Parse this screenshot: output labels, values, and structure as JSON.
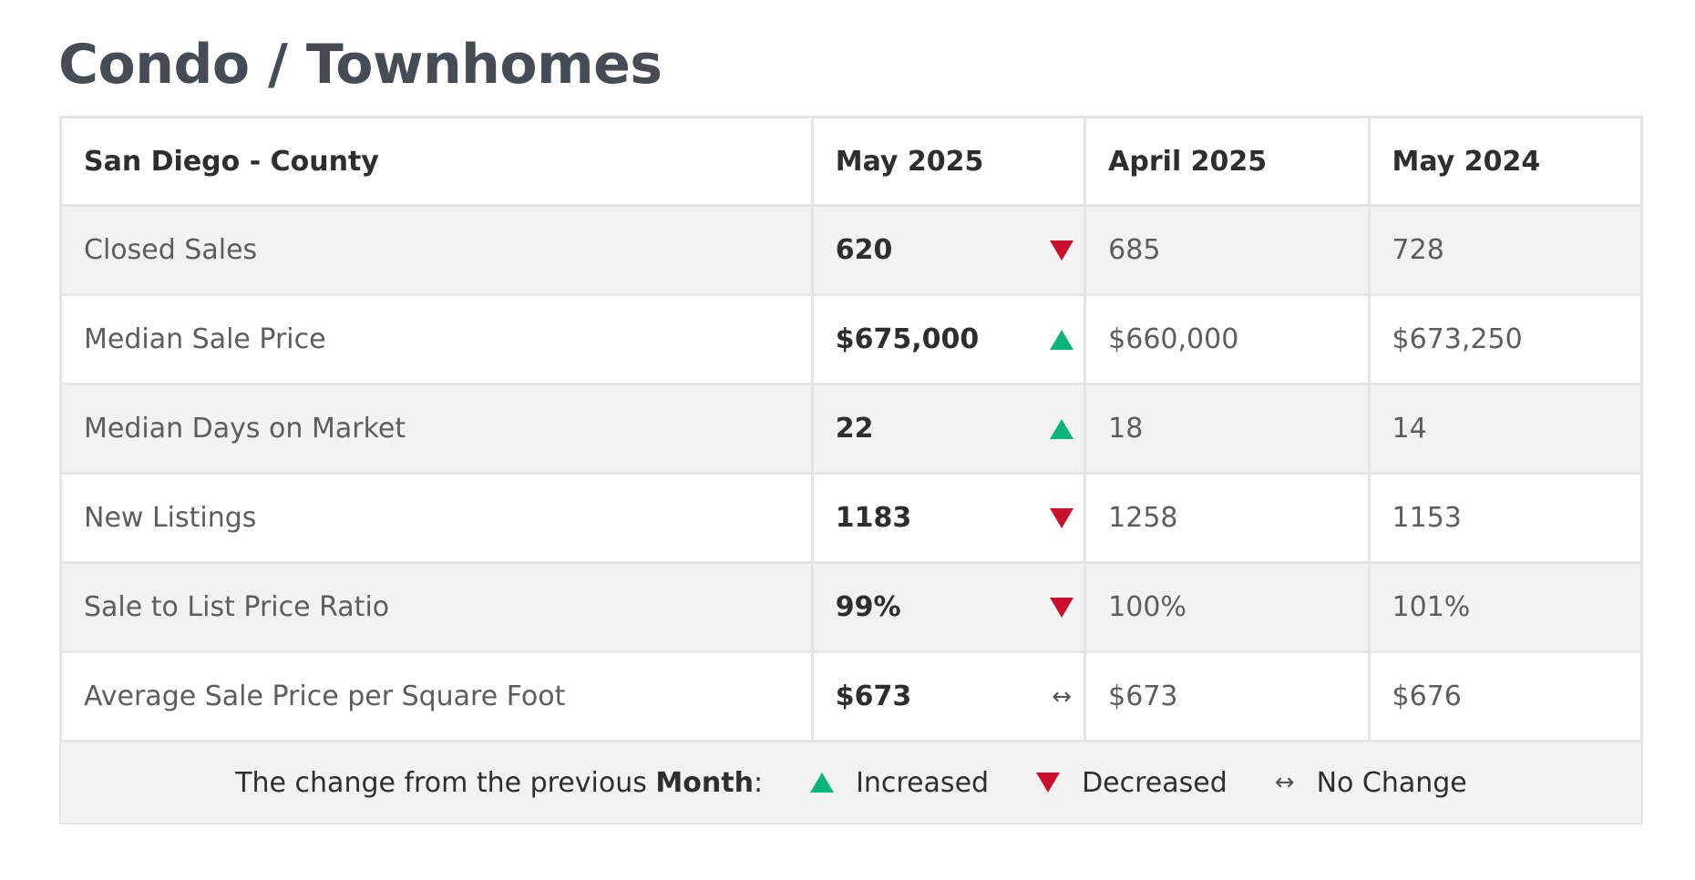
{
  "title": "Condo / Townhomes",
  "colors": {
    "increase": "#0ab47a",
    "decrease": "#c8102e",
    "title": "#464c55",
    "shaded_row": "#f2f2f2",
    "border": "#e3e5e8"
  },
  "table": {
    "headers": [
      "San Diego - County",
      "May 2025",
      "April 2025",
      "May 2024"
    ],
    "rows": [
      {
        "label": "Closed Sales",
        "current": "620",
        "trend": "down",
        "previous": "685",
        "year_ago": "728"
      },
      {
        "label": "Median Sale Price",
        "current": "$675,000",
        "trend": "up",
        "previous": "$660,000",
        "year_ago": "$673,250"
      },
      {
        "label": "Median Days on Market",
        "current": "22",
        "trend": "up",
        "previous": "18",
        "year_ago": "14"
      },
      {
        "label": "New Listings",
        "current": "1183",
        "trend": "down",
        "previous": "1258",
        "year_ago": "1153"
      },
      {
        "label": "Sale to List Price Ratio",
        "current": "99%",
        "trend": "down",
        "previous": "100%",
        "year_ago": "101%"
      },
      {
        "label": "Average Sale Price per Square Foot",
        "current": "$673",
        "trend": "none",
        "previous": "$673",
        "year_ago": "$676"
      }
    ]
  },
  "legend": {
    "prefix": "The change from the previous ",
    "period": "Month",
    "colon": ":",
    "increased": "Increased",
    "decreased": "Decreased",
    "no_change_symbol": "↔",
    "no_change": "No Change"
  }
}
